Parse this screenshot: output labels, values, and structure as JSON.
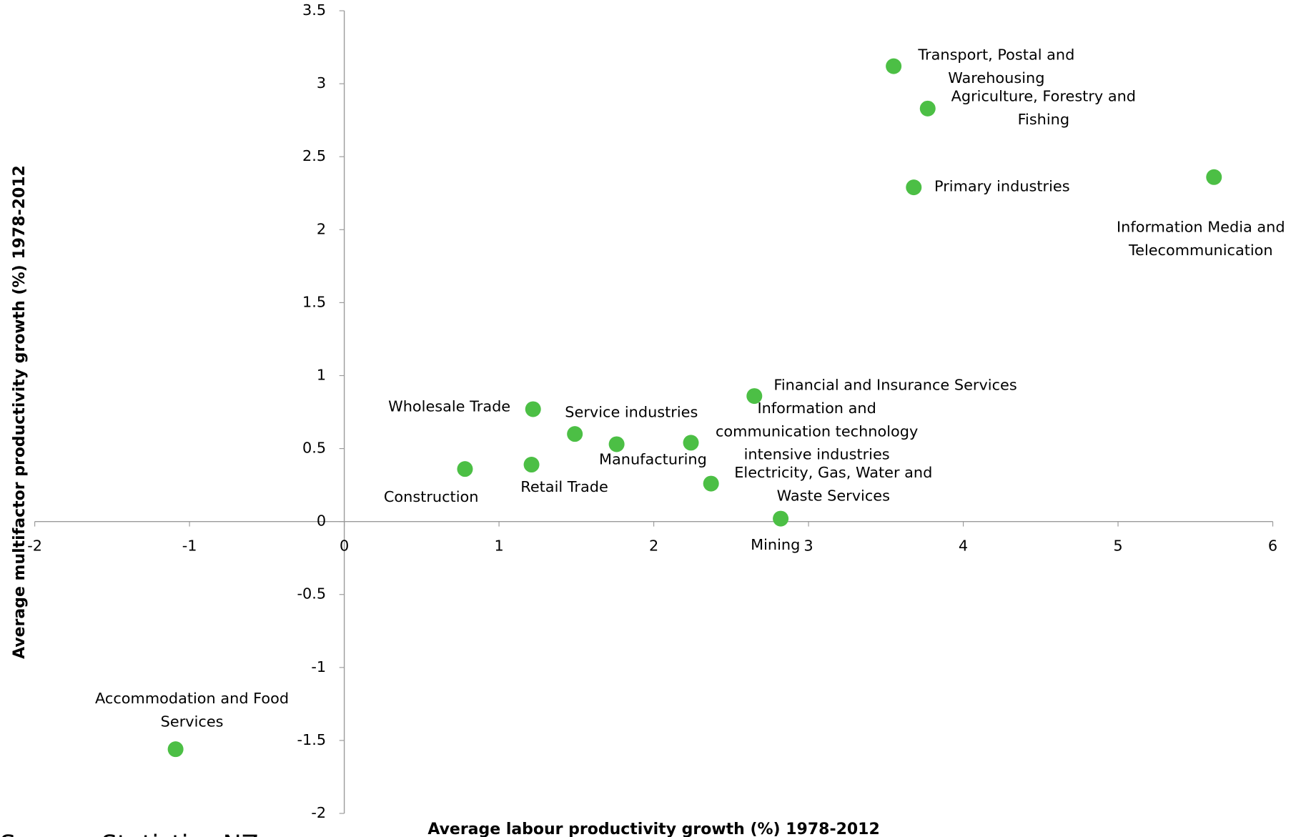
{
  "chart_data": {
    "type": "scatter",
    "x_label": "Average labour productivity growth (%) 1978-2012",
    "y_label": "Average multifactor productivity growth (%) 1978-2012",
    "source": "Source: Statistics NZ",
    "xlim": [
      -2,
      6
    ],
    "xticks": [
      -2,
      -1,
      0,
      1,
      2,
      3,
      4,
      5,
      6
    ],
    "ylim": [
      -2,
      3.5
    ],
    "yticks": [
      -2,
      -1.5,
      -1,
      -0.5,
      0,
      0.5,
      1,
      1.5,
      2,
      2.5,
      3,
      3.5
    ],
    "series": [
      {
        "color": "#4cbf45",
        "labels": [
          "Transport, Postal and Warehousing",
          "Agriculture, Forestry and Fishing",
          "Primary industries",
          "Information Media and Telecommunication",
          "Financial and Insurance Services",
          "Information and communication technology intensive industries",
          "Electricity, Gas, Water and Waste Services",
          "Mining",
          "Wholesale Trade",
          "Service industries",
          "Manufacturing",
          "Retail Trade",
          "Construction",
          "Accommodation and Food Services"
        ],
        "x": [
          3.55,
          3.77,
          3.68,
          5.62,
          2.65,
          2.24,
          2.37,
          2.82,
          1.22,
          1.49,
          1.76,
          1.21,
          0.78,
          -1.09
        ],
        "values": [
          3.12,
          2.83,
          2.29,
          2.36,
          0.86,
          0.54,
          0.26,
          0.02,
          0.77,
          0.6,
          0.53,
          0.39,
          0.36,
          -1.56
        ]
      }
    ]
  }
}
